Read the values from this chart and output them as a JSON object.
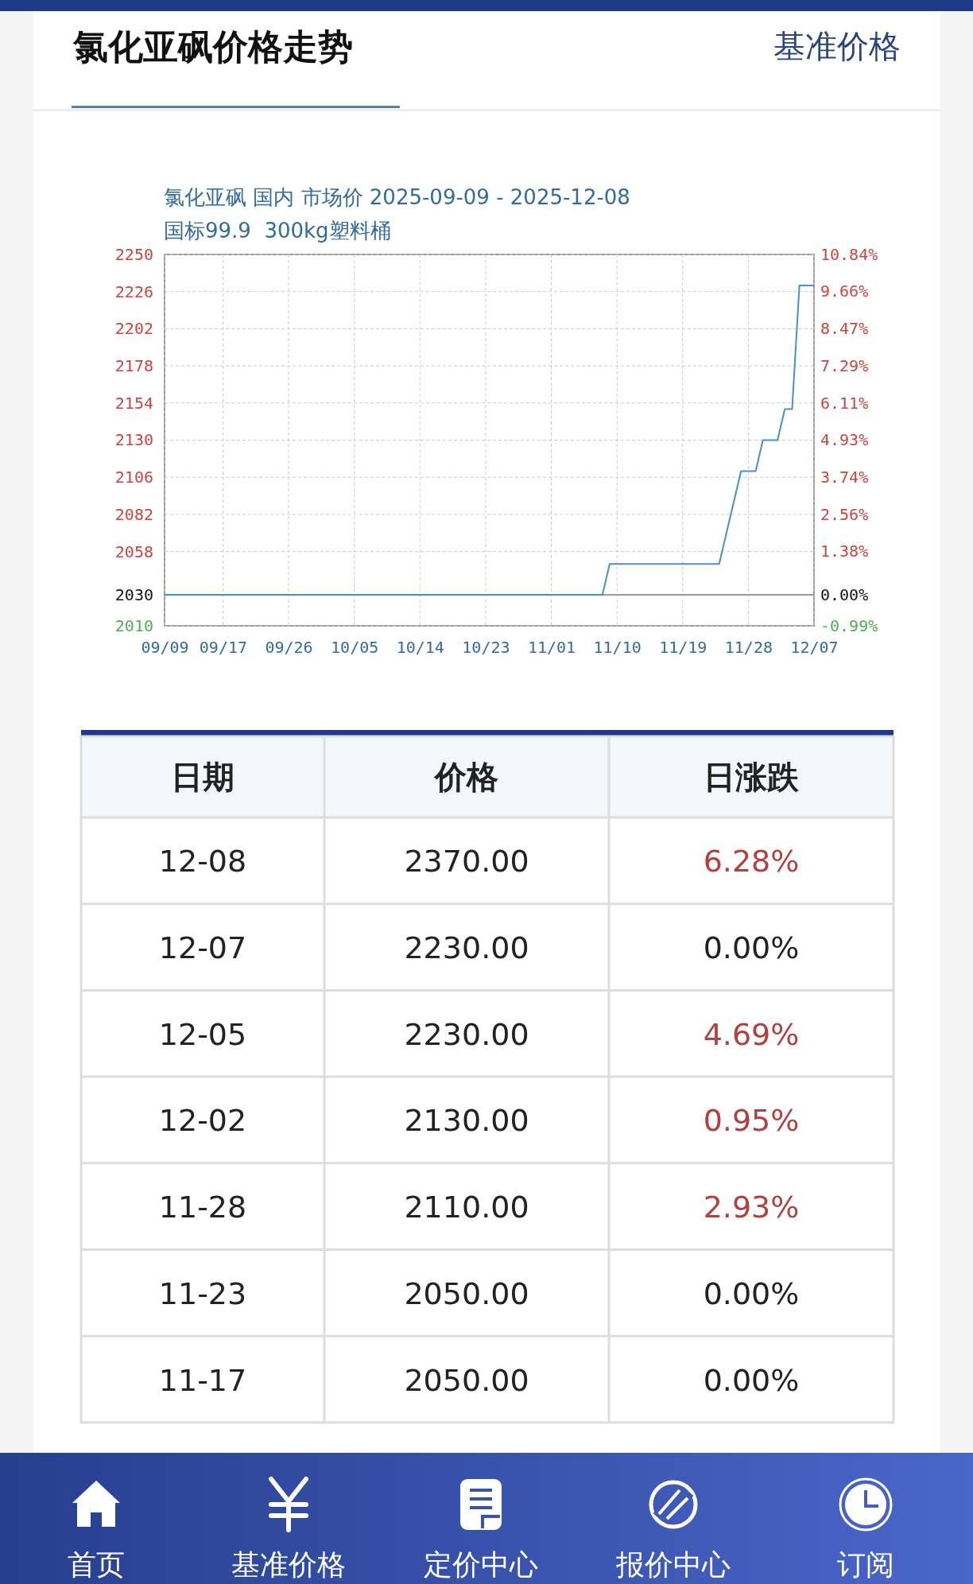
{
  "chart_data": [
    {
      "type": "line",
      "title": "氯化亚砜价格走势",
      "subtitle": "氯化亚砜 国内 市场价 2025-09-09 - 2025-12-08\n国标99.9  300kg塑料桶",
      "annotations": [
        "基准价格"
      ],
      "series": [
        {
          "color": "#4a90c8",
          "x": [
            "2025-09-09",
            "2025-11-08",
            "2025-11-09",
            "2025-11-24",
            "2025-11-27",
            "2025-11-29",
            "2025-11-30",
            "2025-12-02",
            "2025-12-03",
            "2025-12-04",
            "2025-12-05",
            "2025-12-07"
          ],
          "values": [
            2030,
            2030,
            2050,
            2050,
            2110,
            2110,
            2130,
            2130,
            2150,
            2150,
            2230,
            2230
          ]
        }
      ],
      "xlim": [
        "2025-09-09",
        "2025-12-07"
      ],
      "xticks": [
        {
          "value": "2025-09-09",
          "label": "09/09"
        },
        {
          "value": "2025-09-17",
          "label": "09/17"
        },
        {
          "value": "2025-09-26",
          "label": "09/26"
        },
        {
          "value": "2025-10-05",
          "label": "10/05"
        },
        {
          "value": "2025-10-14",
          "label": "10/14"
        },
        {
          "value": "2025-10-23",
          "label": "10/23"
        },
        {
          "value": "2025-11-01",
          "label": "11/01"
        },
        {
          "value": "2025-11-10",
          "label": "11/10"
        },
        {
          "value": "2025-11-19",
          "label": "11/19"
        },
        {
          "value": "2025-11-28",
          "label": "11/28"
        },
        {
          "value": "2025-12-07",
          "label": "12/07"
        }
      ],
      "ylim": [
        2010,
        2250
      ],
      "yticks": [
        2010,
        2030,
        2058,
        2082,
        2106,
        2130,
        2154,
        2178,
        2202,
        2226,
        2250
      ],
      "y2lim": [
        -0.99,
        10.84
      ],
      "y2ticks": [
        {
          "value": -0.99,
          "label": "-0.99%"
        },
        {
          "value": 0,
          "label": "0.00%"
        },
        {
          "value": 1.38,
          "label": "1.38%"
        },
        {
          "value": 2.56,
          "label": "2.56%"
        },
        {
          "value": 3.74,
          "label": "3.74%"
        },
        {
          "value": 4.93,
          "label": "4.93%"
        },
        {
          "value": 6.11,
          "label": "6.11%"
        },
        {
          "value": 7.29,
          "label": "7.29%"
        },
        {
          "value": 8.47,
          "label": "8.47%"
        },
        {
          "value": 9.66,
          "label": "9.66%"
        },
        {
          "value": 10.84,
          "label": "10.84%"
        }
      ],
      "ref_lines": [
        {
          "axis": "y",
          "value": 2030,
          "color": "#999999"
        }
      ],
      "grid": true,
      "marker": "none",
      "line_style": "solid"
    },
    {
      "type": "other",
      "categories": [
        "日期",
        "价格",
        "日涨跌"
      ],
      "cell_labels": [
        [
          "12-08",
          "2370.00",
          "6.28%"
        ],
        [
          "12-07",
          "2230.00",
          "0.00%"
        ],
        [
          "12-05",
          "2230.00",
          "4.69%"
        ],
        [
          "12-02",
          "2130.00",
          "0.95%"
        ],
        [
          "11-28",
          "2110.00",
          "2.93%"
        ],
        [
          "11-23",
          "2050.00",
          "0.00%"
        ],
        [
          "11-17",
          "2050.00",
          "0.00%"
        ]
      ],
      "annotations": [
        "首页",
        "基准价格",
        "定价中心",
        "报价中心",
        "订阅"
      ]
    }
  ]
}
